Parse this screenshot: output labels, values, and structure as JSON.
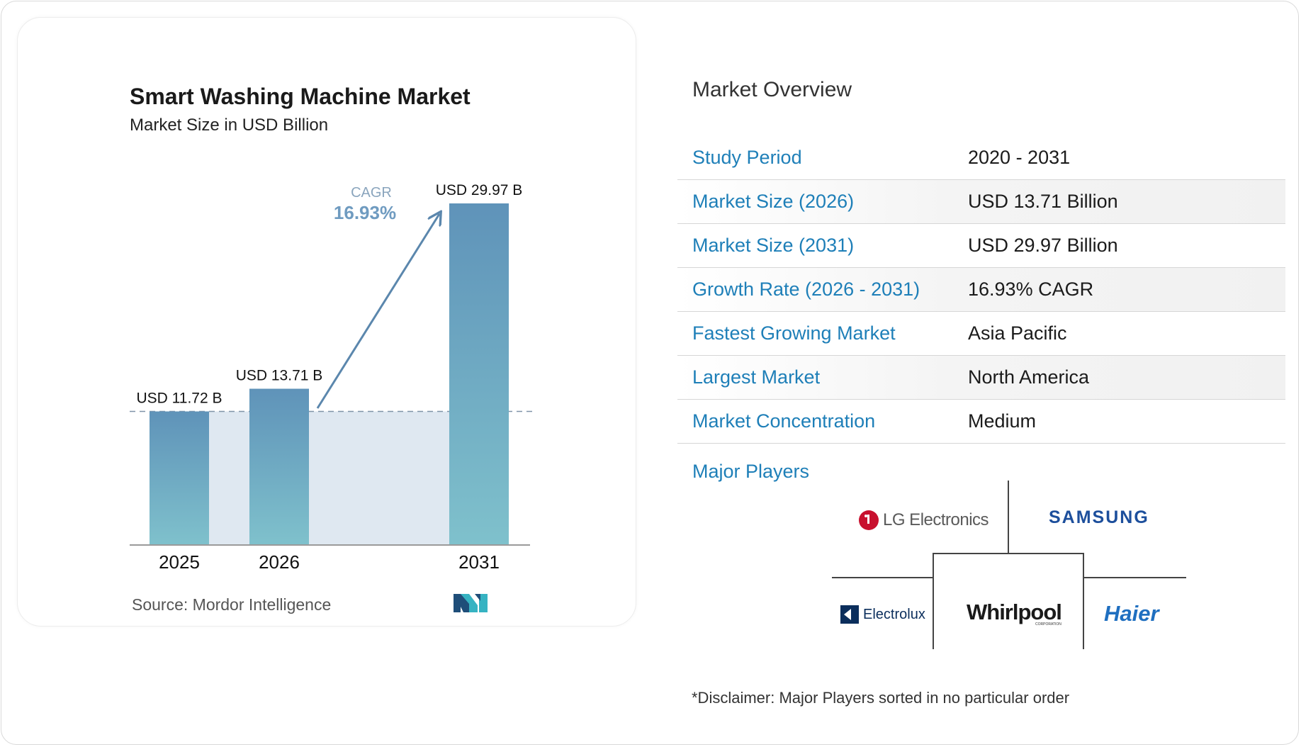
{
  "chart_data": {
    "type": "bar",
    "title": "Smart Washing Machine Market",
    "subtitle": "Market Size in USD Billion",
    "categories": [
      "2025",
      "2026",
      "2031"
    ],
    "values": [
      11.72,
      13.71,
      29.97
    ],
    "value_labels": [
      "USD 11.72 B",
      "USD 13.71 B",
      "USD 29.97 B"
    ],
    "ylim": [
      0,
      29.97
    ],
    "grid": false,
    "cagr_label": "CAGR",
    "cagr_value": "16.93%",
    "bar_color_top": "#5f93b9",
    "bar_color_bottom": "#7fc1cc",
    "band_color": "#dfe8f1",
    "arrow_color": "#5b87ad"
  },
  "source_text": "Source:  Mordor Intelligence",
  "overview": {
    "title": "Market Overview",
    "rows": [
      {
        "label": "Study Period",
        "value": "2020 - 2031"
      },
      {
        "label": "Market Size (2026)",
        "value": "USD 13.71 Billion"
      },
      {
        "label": "Market Size (2031)",
        "value": "USD 29.97 Billion"
      },
      {
        "label": "Growth Rate (2026 - 2031)",
        "value": "16.93% CAGR"
      },
      {
        "label": "Fastest Growing Market",
        "value": "Asia Pacific"
      },
      {
        "label": "Largest Market",
        "value": "North America"
      },
      {
        "label": "Market Concentration",
        "value": "Medium"
      }
    ]
  },
  "players": {
    "label": "Major Players",
    "logos": {
      "lg": "LG Electronics",
      "samsung": "SAMSUNG",
      "electrolux": "Electrolux",
      "whirlpool": "Whirlpool",
      "whirlpool_sub": "CORPORATION",
      "haier": "Haier"
    }
  },
  "disclaimer": "*Disclaimer: Major Players sorted in no particular order",
  "colors": {
    "accent_blue": "#1e7fb8",
    "haier_blue": "#1f6fc0",
    "samsung_blue": "#1d4f9c",
    "lg_red": "#c8102e"
  }
}
